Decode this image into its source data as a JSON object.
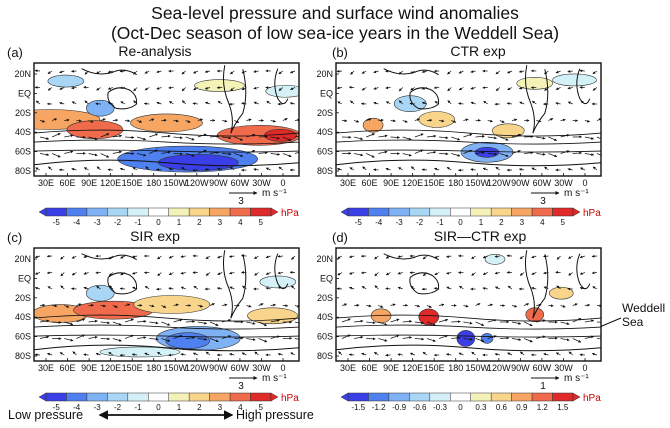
{
  "title_line1": "Sea-level pressure and surface wind anomalies",
  "title_line2": "(Oct-Dec season of low sea-ice years in the Weddell Sea)",
  "panels": [
    {
      "label": "(a)",
      "title": "Re-analysis",
      "ref_value": "3",
      "ref_unit": "m s⁻¹",
      "cb_ticks": [
        "-5",
        "-4",
        "-3",
        "-2",
        "-1",
        "0",
        "1",
        "2",
        "3",
        "4",
        "5"
      ],
      "cb_unit": "hPa"
    },
    {
      "label": "(b)",
      "title": "CTR exp",
      "ref_value": "3",
      "ref_unit": "m s⁻¹",
      "cb_ticks": [
        "-5",
        "-4",
        "-3",
        "-2",
        "-1",
        "0",
        "1",
        "2",
        "3",
        "4",
        "5"
      ],
      "cb_unit": "hPa"
    },
    {
      "label": "(c)",
      "title": "SIR exp",
      "ref_value": "3",
      "ref_unit": "m s⁻¹",
      "cb_ticks": [
        "-5",
        "-4",
        "-3",
        "-2",
        "-1",
        "0",
        "1",
        "2",
        "3",
        "4",
        "5"
      ],
      "cb_unit": "hPa"
    },
    {
      "label": "(d)",
      "title": "SIR—CTR exp",
      "ref_value": "1",
      "ref_unit": "m s⁻¹",
      "cb_ticks": [
        "-1.5",
        "-1.2",
        "-0.9",
        "-0.6",
        "-0.3",
        "0",
        "0.3",
        "0.6",
        "0.9",
        "1.2",
        "1.5"
      ],
      "cb_unit": "hPa"
    }
  ],
  "lat_labels": [
    "20N",
    "EQ",
    "20S",
    "40S",
    "60S",
    "80S"
  ],
  "lon_labels": [
    "30E",
    "60E",
    "90E",
    "120E",
    "150E",
    "180",
    "150W",
    "120W",
    "90W",
    "60W",
    "30W",
    "0"
  ],
  "annotation_weddell": [
    "Weddell",
    "Sea"
  ],
  "low_pressure": "Low pressure",
  "high_pressure": "High pressure",
  "colors": {
    "scale": [
      "#3a3fe8",
      "#4f80f0",
      "#7fb1f5",
      "#a9d6f5",
      "#d4f1f7",
      "#ffffff",
      "#f5f2b8",
      "#f8d58a",
      "#f6a662",
      "#ef6b4c",
      "#e02a2a"
    ]
  }
}
